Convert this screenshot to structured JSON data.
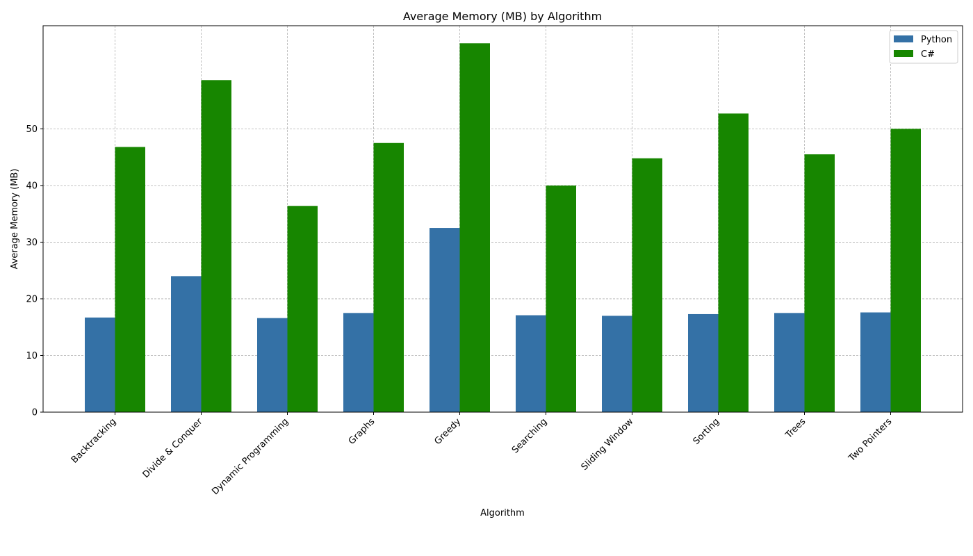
{
  "chart_data": {
    "type": "bar",
    "title": "Average Memory (MB) by Algorithm",
    "xlabel": "Algorithm",
    "ylabel": "Average Memory (MB)",
    "categories": [
      "Backtracking",
      "Divide & Conquer",
      "Dynamic Programming",
      "Graphs",
      "Greedy",
      "Searching",
      "Sliding Window",
      "Sorting",
      "Trees",
      "Two Pointers"
    ],
    "series": [
      {
        "name": "Python",
        "color": "#3471a6",
        "values": [
          16.7,
          24.0,
          16.6,
          17.5,
          32.5,
          17.1,
          17.0,
          17.3,
          17.5,
          17.6
        ]
      },
      {
        "name": "C#",
        "color": "#178600",
        "values": [
          46.8,
          58.6,
          36.4,
          47.5,
          65.1,
          40.0,
          44.8,
          52.7,
          45.5,
          50.0
        ]
      }
    ],
    "yticks": [
      0,
      10,
      20,
      30,
      40,
      50
    ],
    "ylim": [
      0,
      68.2
    ],
    "grid": true,
    "legend_position": "top-right"
  }
}
